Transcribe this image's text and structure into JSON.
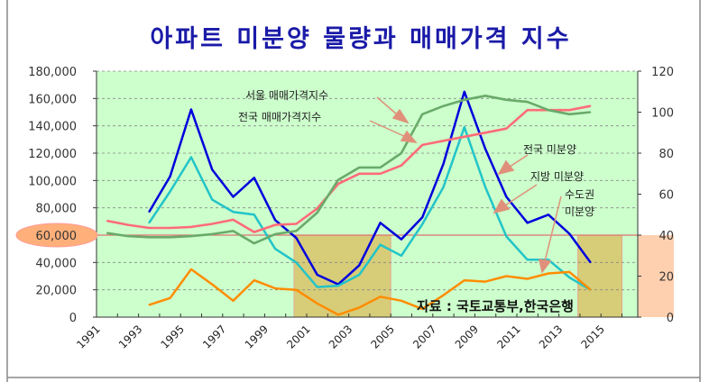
{
  "chart_data": {
    "type": "line",
    "title": "아파트 미분양 물량과 매매가격 지수",
    "source": "자료 : 국토교통부,한국은행",
    "x": [
      1991,
      1992,
      1993,
      1994,
      1995,
      1996,
      1997,
      1998,
      1999,
      2000,
      2001,
      2002,
      2003,
      2004,
      2005,
      2006,
      2007,
      2008,
      2009,
      2010,
      2011,
      2012,
      2013,
      2014
    ],
    "x_tick_labels": [
      "1991",
      "1993",
      "1995",
      "1997",
      "1999",
      "2001",
      "2003",
      "2005",
      "2007",
      "2009",
      "2011",
      "2013",
      "2015"
    ],
    "xlim": [
      1991,
      2016
    ],
    "y_left": {
      "range": [
        0,
        180000
      ],
      "ticks": [
        "0",
        "20,000",
        "40,000",
        "60,000",
        "80,000",
        "100,000",
        "120,000",
        "140,000",
        "160,000",
        "180,000"
      ],
      "highlight": "60,000"
    },
    "y_right": {
      "range": [
        0,
        120
      ],
      "ticks": [
        "0",
        "20",
        "40",
        "60",
        "80",
        "100",
        "120"
      ]
    },
    "grid": true,
    "reference_line": 60000,
    "shaded_periods": [
      [
        2000,
        2005
      ],
      [
        2013.5,
        2016
      ]
    ],
    "series": [
      {
        "name": "전국 미분양",
        "axis": "left",
        "color": "#0000dd",
        "values": [
          null,
          null,
          77000,
          103000,
          152000,
          108000,
          88000,
          102000,
          71000,
          58000,
          31000,
          24000,
          38000,
          69000,
          57000,
          73000,
          112000,
          165000,
          123000,
          88000,
          69000,
          75000,
          61000,
          40000
        ]
      },
      {
        "name": "지방 미분양",
        "axis": "left",
        "color": "#22c4c8",
        "values": [
          null,
          null,
          69000,
          92000,
          117000,
          86000,
          77000,
          75000,
          50000,
          40000,
          22000,
          23000,
          31000,
          53000,
          45000,
          68000,
          95000,
          139000,
          95000,
          59000,
          42000,
          42000,
          29000,
          20000
        ]
      },
      {
        "name": "수도권 미분양",
        "axis": "left",
        "color": "#ff8c00",
        "values": [
          null,
          null,
          9000,
          14000,
          35000,
          24000,
          12000,
          27000,
          21000,
          20000,
          10000,
          1700,
          7000,
          15000,
          12000,
          6000,
          16000,
          27000,
          26000,
          30000,
          28000,
          32000,
          33000,
          20000
        ]
      },
      {
        "name": "전국 매매가격지수",
        "axis": "right",
        "color": "#ff6b78",
        "values": [
          47,
          45,
          43.5,
          43.5,
          44,
          45.5,
          47.5,
          41.5,
          45,
          45.5,
          53,
          65,
          70,
          70,
          74,
          84,
          86,
          88,
          90,
          92,
          101,
          101,
          101,
          103
        ]
      },
      {
        "name": "서울 매매가격지수",
        "axis": "right",
        "color": "#6aaa6a",
        "values": [
          41,
          39.5,
          39,
          39,
          39.5,
          40.5,
          42,
          36,
          40.5,
          42,
          51,
          67,
          73,
          73,
          80,
          99,
          103,
          106,
          108,
          106,
          105,
          101,
          99,
          100
        ]
      }
    ],
    "annotations": {
      "seoul": "서울 매매가격지수",
      "national_index": "전국 매매가격지수",
      "national_unsold": "전국 미분양",
      "local_unsold": "지방 미분양",
      "capital_unsold_1": "수도권",
      "capital_unsold_2": "미분양"
    }
  }
}
